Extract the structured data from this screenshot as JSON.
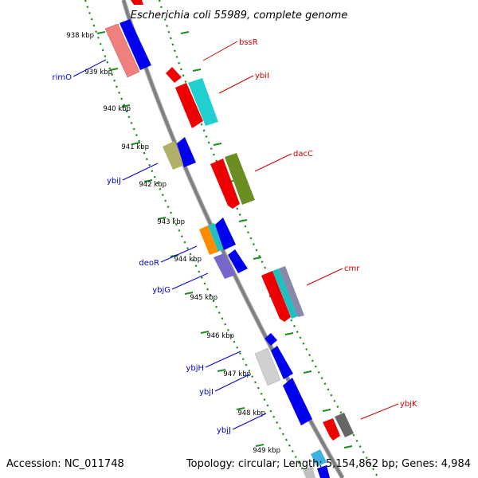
{
  "title": "Escherichia coli 55989, complete genome",
  "footer": {
    "accession": "Accession: NC_011748",
    "topology": "Topology: circular; Length: 5,154,862 bp; Genes: 4,984"
  },
  "colors": {
    "backbone": "#888888",
    "ruler": "#1e8c1e",
    "forward_label": "#cc0000",
    "reverse_label": "#0000cc",
    "tick_label": "#000000"
  },
  "ruler_ticks": [
    "938 kbp",
    "939 kbp",
    "940 kbp",
    "941 kbp",
    "942 kbp",
    "943 kbp",
    "944 kbp",
    "945 kbp",
    "946 kbp",
    "947 kbp",
    "948 kbp",
    "949 kbp"
  ],
  "forward_gene_labels": [
    "bssR",
    "ybiI",
    "dacC",
    "cmr",
    "ybjK"
  ],
  "reverse_gene_labels": [
    "rimO",
    "ybiJ",
    "deoR",
    "ybjG",
    "ybjH",
    "ybjI",
    "ybjJ"
  ]
}
